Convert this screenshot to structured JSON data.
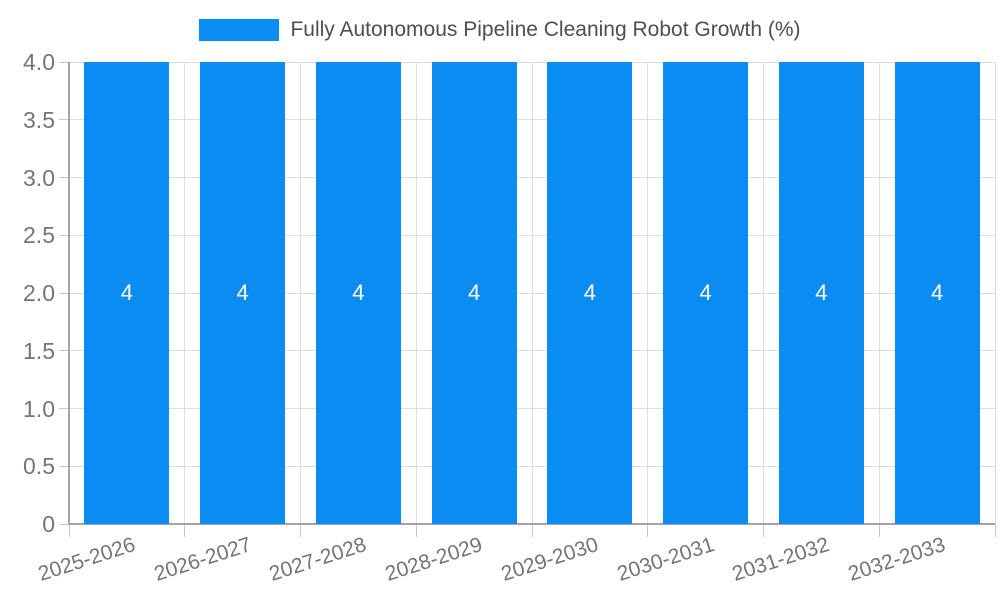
{
  "legend": {
    "label": "Fully Autonomous Pipeline Cleaning Robot Growth (%)"
  },
  "chart_data": {
    "type": "bar",
    "title": "Fully Autonomous Pipeline Cleaning Robot Growth (%)",
    "categories": [
      "2025-2026",
      "2026-2027",
      "2027-2028",
      "2028-2029",
      "2029-2030",
      "2030-2031",
      "2031-2032",
      "2032-2033"
    ],
    "values": [
      4,
      4,
      4,
      4,
      4,
      4,
      4,
      4
    ],
    "bar_value_labels": [
      "4",
      "4",
      "4",
      "4",
      "4",
      "4",
      "4",
      "4"
    ],
    "xlabel": "",
    "ylabel": "",
    "ylim": [
      0,
      4
    ],
    "yticks": [
      0,
      0.5,
      1,
      1.5,
      2,
      2.5,
      3,
      3.5,
      4
    ],
    "ytick_labels": [
      "0",
      "0.5",
      "1.0",
      "1.5",
      "2.0",
      "2.5",
      "3.0",
      "3.5",
      "4.0"
    ],
    "grid": true,
    "legend_position": "top-center",
    "colors": {
      "bar": "#0b8cf2",
      "bar_label": "#ffffff",
      "grid": "#dedede",
      "axis": "#a3a3a3",
      "tick": "#c9c9c9",
      "tick_text": "#757575",
      "legend_text": "#4e4e4e"
    }
  }
}
